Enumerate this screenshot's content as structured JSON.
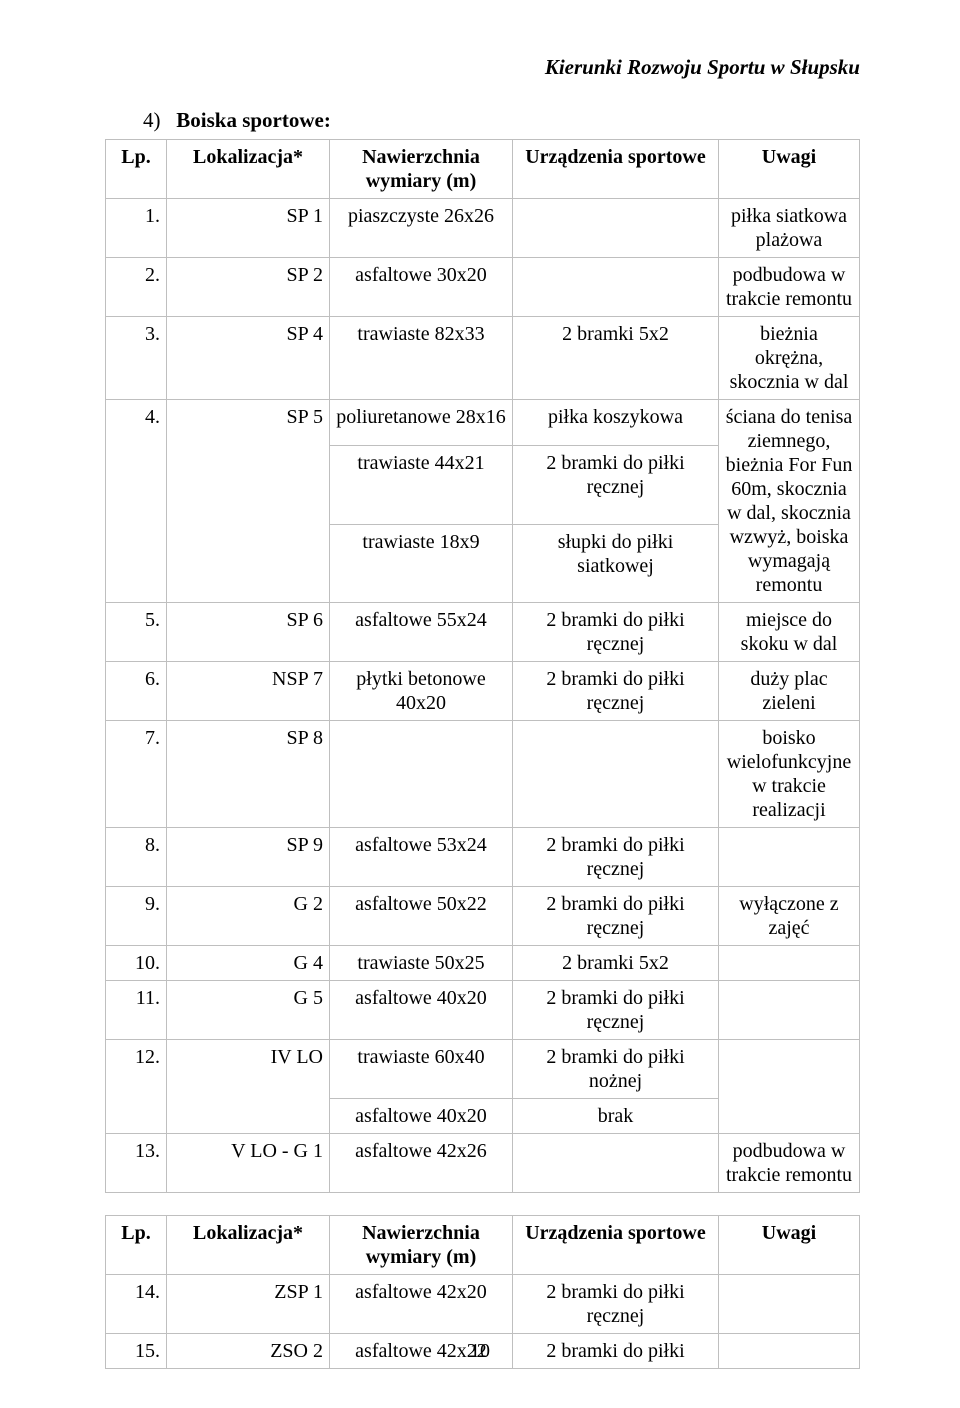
{
  "header": "Kierunki Rozwoju Sportu w Słupsku",
  "section": {
    "num": "4)",
    "title": "Boiska sportowe:"
  },
  "table1": {
    "columns": [
      "Lp.",
      "Lokalizacja*",
      "Nawierzchnia wymiary (m)",
      "Urządzenia sportowe",
      "Uwagi"
    ],
    "rows": [
      {
        "lp": "1.",
        "lok": "SP 1",
        "naw": "piaszczyste 26x26",
        "urz": "",
        "uw": "piłka siatkowa plażowa"
      },
      {
        "lp": "2.",
        "lok": "SP 2",
        "naw": "asfaltowe 30x20",
        "urz": "",
        "uw": "podbudowa w trakcie remontu"
      },
      {
        "lp": "3.",
        "lok": "SP 4",
        "naw": "trawiaste 82x33",
        "urz": "2 bramki 5x2",
        "uw": "bieżnia okrężna, skocznia w dal"
      },
      {
        "lp": "4.",
        "lok": "SP 5",
        "sub": [
          {
            "naw": "poliuretanowe 28x16",
            "urz": "piłka koszykowa"
          },
          {
            "naw": "trawiaste 44x21",
            "urz": "2 bramki do piłki ręcznej"
          },
          {
            "naw": "trawiaste 18x9",
            "urz": "słupki do piłki siatkowej"
          }
        ],
        "uw": "ściana do tenisa ziemnego, bieżnia For Fun 60m, skocznia w dal, skocznia wzwyż, boiska wymagają remontu"
      },
      {
        "lp": "5.",
        "lok": "SP 6",
        "naw": "asfaltowe 55x24",
        "urz": "2 bramki do piłki ręcznej",
        "uw": "miejsce do skoku w dal"
      },
      {
        "lp": "6.",
        "lok": "NSP 7",
        "naw": "płytki betonowe 40x20",
        "urz": "2 bramki do piłki ręcznej",
        "uw": "duży plac zieleni"
      },
      {
        "lp": "7.",
        "lok": "SP 8",
        "naw": "",
        "urz": "",
        "uw": "boisko wielofunkcyjne w trakcie realizacji"
      },
      {
        "lp": "8.",
        "lok": "SP 9",
        "naw": "asfaltowe 53x24",
        "urz": "2 bramki do piłki ręcznej",
        "uw": ""
      },
      {
        "lp": "9.",
        "lok": "G 2",
        "naw": "asfaltowe 50x22",
        "urz": "2 bramki do piłki ręcznej",
        "uw": "wyłączone z zajęć"
      },
      {
        "lp": "10.",
        "lok": "G 4",
        "naw": "trawiaste 50x25",
        "urz": "2 bramki 5x2",
        "uw": ""
      },
      {
        "lp": "11.",
        "lok": "G 5",
        "naw": "asfaltowe 40x20",
        "urz": "2 bramki do piłki ręcznej",
        "uw": ""
      },
      {
        "lp": "12.",
        "lok": "IV LO",
        "sub": [
          {
            "naw": "trawiaste 60x40",
            "urz": "2 bramki do piłki nożnej"
          },
          {
            "naw": "asfaltowe 40x20",
            "urz": "brak"
          }
        ],
        "uw": ""
      },
      {
        "lp": "13.",
        "lok": "V LO - G 1",
        "naw": "asfaltowe 42x26",
        "urz": "",
        "uw": "podbudowa w trakcie remontu"
      }
    ]
  },
  "table2": {
    "columns": [
      "Lp.",
      "Lokalizacja*",
      "Nawierzchnia wymiary (m)",
      "Urządzenia sportowe",
      "Uwagi"
    ],
    "rows": [
      {
        "lp": "14.",
        "lok": "ZSP 1",
        "naw": "asfaltowe 42x20",
        "urz": "2 bramki do piłki ręcznej",
        "uw": ""
      },
      {
        "lp": "15.",
        "lok": "ZSO 2",
        "naw": "asfaltowe 42x22",
        "urz": "2 bramki do piłki",
        "uw": ""
      }
    ]
  },
  "pageNumber": "10"
}
